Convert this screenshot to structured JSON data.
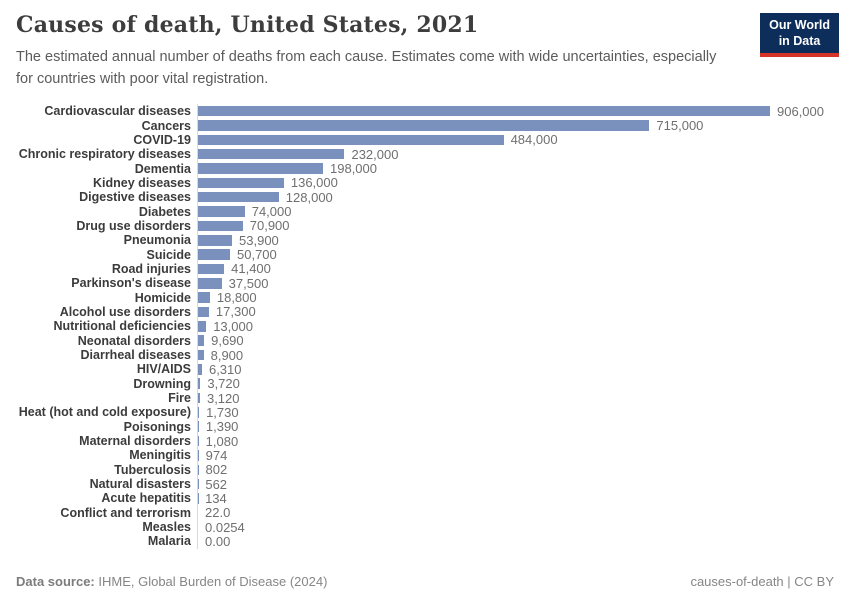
{
  "header": {
    "title": "Causes of death, United States, 2021",
    "subtitle": "The estimated annual number of deaths from each cause. Estimates come with wide uncertainties, especially for countries with poor vital registration.",
    "logo": {
      "line1": "Our World",
      "line2": "in Data"
    }
  },
  "chart_data": {
    "type": "bar",
    "orientation": "horizontal",
    "title": "Causes of death, United States, 2021",
    "xlabel": "",
    "ylabel": "",
    "xlim": [
      0,
      906000
    ],
    "grid": false,
    "legend": false,
    "bar_color": "#7a91be",
    "axis_line_color": "#d9d9d9",
    "categories": [
      "Cardiovascular diseases",
      "Cancers",
      "COVID-19",
      "Chronic respiratory diseases",
      "Dementia",
      "Kidney diseases",
      "Digestive diseases",
      "Diabetes",
      "Drug use disorders",
      "Pneumonia",
      "Suicide",
      "Road injuries",
      "Parkinson's disease",
      "Homicide",
      "Alcohol use disorders",
      "Nutritional deficiencies",
      "Neonatal disorders",
      "Diarrheal diseases",
      "HIV/AIDS",
      "Drowning",
      "Fire",
      "Heat (hot and cold exposure)",
      "Poisonings",
      "Maternal disorders",
      "Meningitis",
      "Tuberculosis",
      "Natural disasters",
      "Acute hepatitis",
      "Conflict and terrorism",
      "Measles",
      "Malaria"
    ],
    "values": [
      906000,
      715000,
      484000,
      232000,
      198000,
      136000,
      128000,
      74000,
      70900,
      53900,
      50700,
      41400,
      37500,
      18800,
      17300,
      13000,
      9690,
      8900,
      6310,
      3720,
      3120,
      1730,
      1390,
      1080,
      974,
      802,
      562,
      134,
      22.0,
      0.0254,
      0.0
    ],
    "value_labels": [
      "906,000",
      "715,000",
      "484,000",
      "232,000",
      "198,000",
      "136,000",
      "128,000",
      "74,000",
      "70,900",
      "53,900",
      "50,700",
      "41,400",
      "37,500",
      "18,800",
      "17,300",
      "13,000",
      "9,690",
      "8,900",
      "6,310",
      "3,720",
      "3,120",
      "1,730",
      "1,390",
      "1,080",
      "974",
      "802",
      "562",
      "134",
      "22.0",
      "0.0254",
      "0.00"
    ]
  },
  "footer": {
    "datasource_label": "Data source:",
    "datasource_value": "IHME, Global Burden of Disease (2024)",
    "right_text": "causes-of-death | CC BY"
  },
  "colors": {
    "bar": "#7a91be",
    "logo_background": "#0d2e5a",
    "logo_accent": "#d8352a",
    "title_text": "#3d3d3d",
    "subtitle_text": "#5b5b5b",
    "label_text": "#3b3b3b",
    "value_text": "#6f6f6f",
    "footer_text": "#868686"
  }
}
